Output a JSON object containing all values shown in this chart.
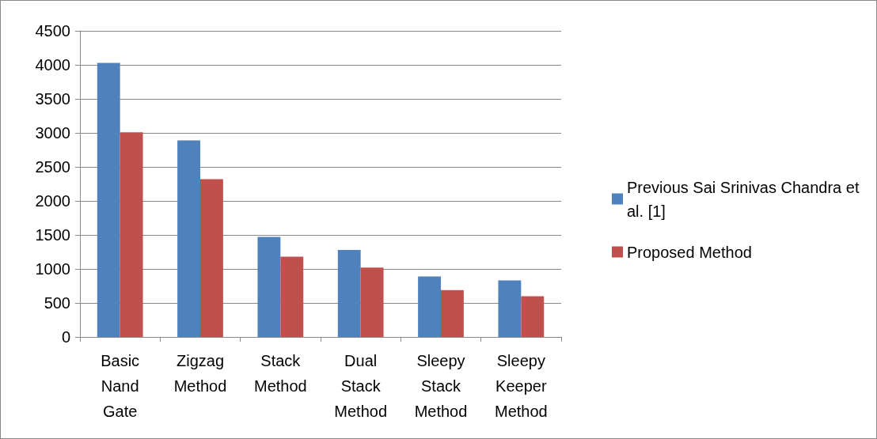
{
  "chart_data": {
    "type": "bar",
    "categories": [
      "Basic\nNand\nGate",
      "Zigzag\nMethod",
      "Stack\nMethod",
      "Dual\nStack\nMethod",
      "Sleepy\nStack\nMethod",
      "Sleepy\nKeeper\nMethod"
    ],
    "series": [
      {
        "name": "Previous Sai Srinivas Chandra et al. [1]",
        "color": "#4f81bd",
        "values": [
          4030,
          2890,
          1470,
          1280,
          890,
          830
        ]
      },
      {
        "name": "Proposed Method",
        "color": "#c0504d",
        "values": [
          3010,
          2320,
          1180,
          1020,
          690,
          600
        ]
      }
    ],
    "ylim": [
      0,
      4500
    ],
    "yticks": [
      0,
      500,
      1000,
      1500,
      2000,
      2500,
      3000,
      3500,
      4000,
      4500
    ],
    "grid": "y",
    "legend": "right"
  }
}
